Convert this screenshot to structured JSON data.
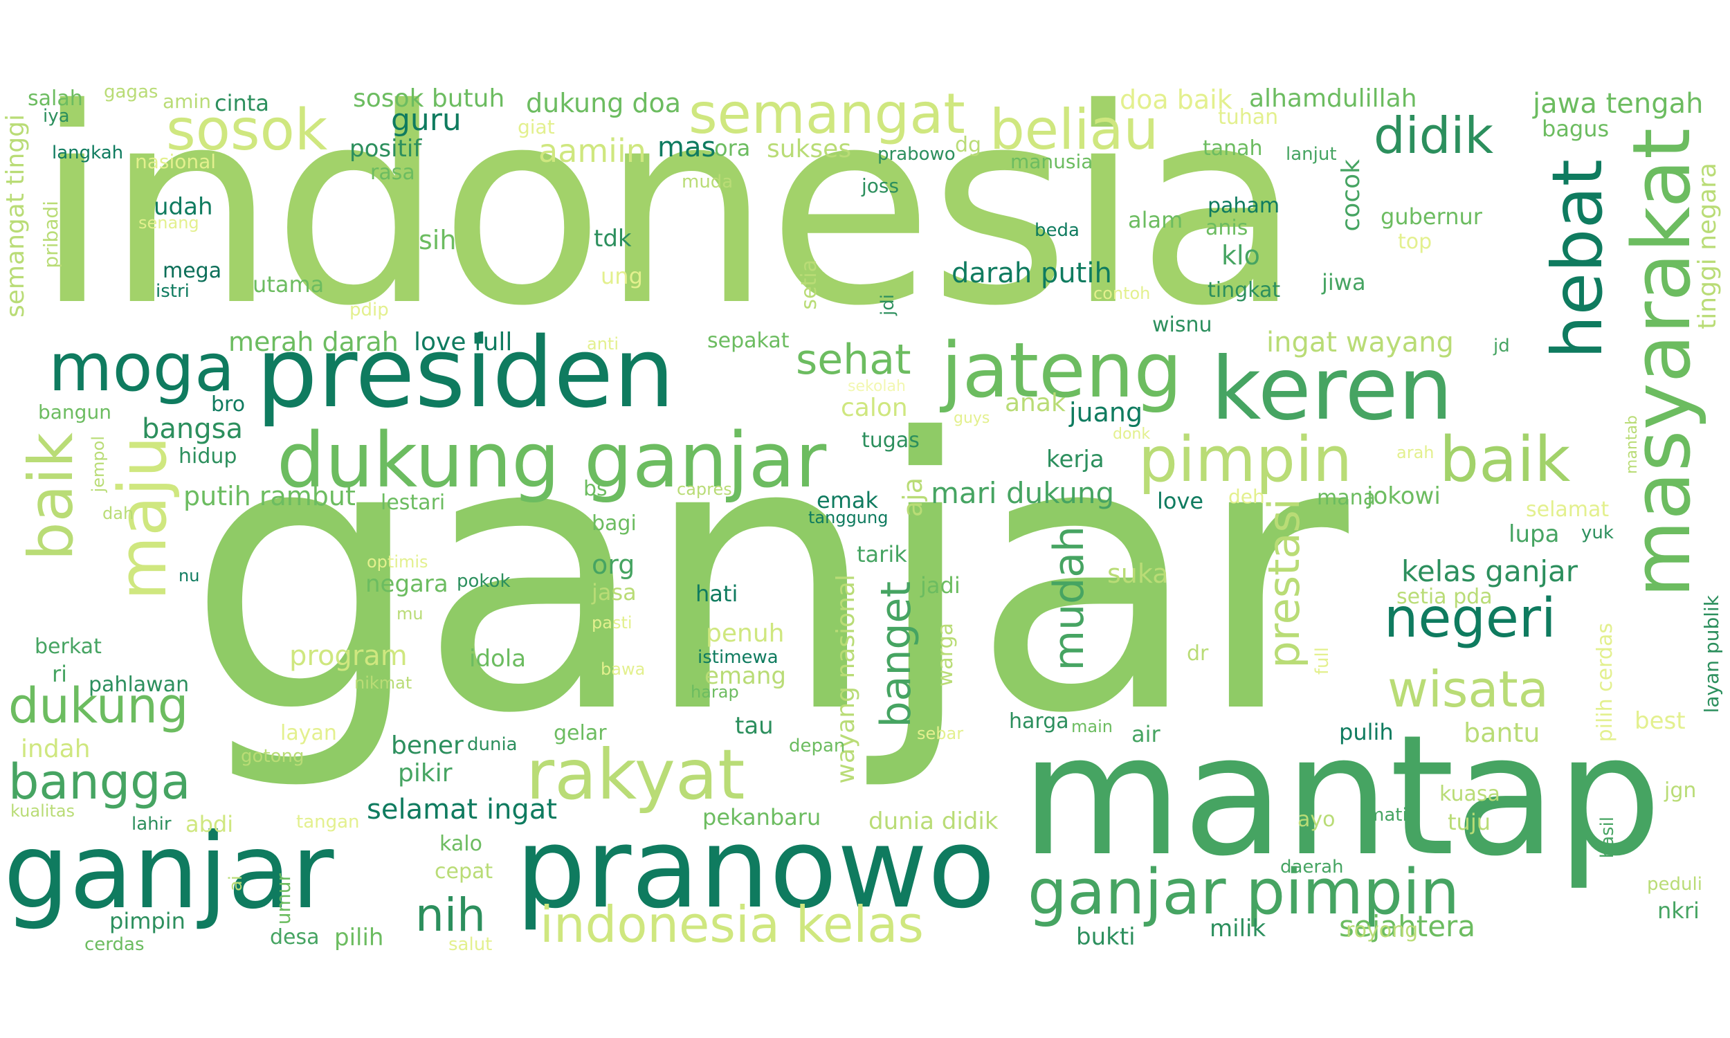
{
  "colors": {
    "background": "#ffffff",
    "light_yellow": "#f2f7b0",
    "yellow_green": "#e3f08e",
    "light_green": "#a2d26a",
    "green": "#6cbc60",
    "teal": "#2c8f5d",
    "dark_teal": "#0b6e58"
  },
  "words": {
    "indonesia": "indonesia",
    "ganjar": "ganjar",
    "mantap": "mantap",
    "ganjar_pranowo_1": "ganjar",
    "ganjar_pranowo_2": "pranowo",
    "presiden": "presiden",
    "dukung_ganjar": "dukung ganjar",
    "masyarakat": "masyarakat",
    "keren": "keren",
    "hebat": "hebat",
    "jateng": "jateng",
    "pimpin": "pimpin",
    "baik_right": "baik",
    "ganjar_pimpin": "ganjar pimpin",
    "rakyat": "rakyat",
    "indonesia_kelas": "indonesia kelas",
    "semangat": "semangat",
    "sosok": "sosok",
    "beliau": "beliau",
    "didik": "didik",
    "moga": "moga",
    "maju": "maju",
    "baik_left": "baik",
    "dukung": "dukung",
    "bangga": "bangga",
    "nih": "nih",
    "negeri": "negeri",
    "wisata": "wisata",
    "prestasi": "prestasi",
    "mudah": "mudah",
    "banget": "banget",
    "sehat": "sehat",
    "aamiin": "aamiin",
    "semangat_tinggi": "semangat tinggi",
    "tinggi_negara": "tinggi negara",
    "wayang_nasional": "wayang nasional",
    "sejahtera": "sejahtera",
    "kelas_ganjar": "kelas ganjar",
    "dukung_doa": "dukung doa",
    "doa_baik": "doa baik",
    "alhamdulillah": "alhamdulillah",
    "jawa_tengah": "jawa tengah",
    "sosok_butuh": "sosok butuh",
    "salah": "salah",
    "gagas": "gagas",
    "amin": "amin",
    "cinta": "cinta",
    "iya": "iya",
    "langkah": "langkah",
    "nasional": "nasional",
    "positif": "positif",
    "rasa": "rasa",
    "guru": "guru",
    "giat": "giat",
    "mas": "mas",
    "ora": "ora",
    "sukses": "sukses",
    "prabowo": "prabowo",
    "dg": "dg",
    "manusia": "manusia",
    "tuhan": "tuhan",
    "tanah": "tanah",
    "lanjut": "lanjut",
    "bagus": "bagus",
    "udah": "udah",
    "senang": "senang",
    "pribadi": "pribadi",
    "muda": "muda",
    "joss": "joss",
    "sih": "sih",
    "tdk": "tdk",
    "cocok": "cocok",
    "beda": "beda",
    "alam": "alam",
    "paham": "paham",
    "anis": "anis",
    "gubernur": "gubernur",
    "top": "top",
    "mega": "mega",
    "istri": "istri",
    "utama": "utama",
    "ung": "ung",
    "setia": "setia",
    "darah_putih": "darah putih",
    "klo": "klo",
    "tingkat": "tingkat",
    "jiwa": "jiwa",
    "contoh": "contoh",
    "pdip": "pdip",
    "jdi": "jdi",
    "wisnu": "wisnu",
    "merah_darah": "merah darah",
    "love_full": "love full",
    "anti": "anti",
    "sepakat": "sepakat",
    "ingat_wayang": "ingat wayang",
    "jd": "jd",
    "bangun": "bangun",
    "bro": "bro",
    "bangsa": "bangsa",
    "sekolah": "sekolah",
    "calon": "calon",
    "anak": "anak",
    "juang": "juang",
    "guys": "guys",
    "donk": "donk",
    "mantab": "mantab",
    "hidup": "hidup",
    "jempol": "jempol",
    "tugas": "tugas",
    "arah": "arah",
    "kerja": "kerja",
    "putih_rambut": "putih rambut",
    "lestari": "lestari",
    "bs": "bs",
    "capres": "capres",
    "aja": "aja",
    "mari_dukung": "mari dukung",
    "emak": "emak",
    "tanggung": "tanggung",
    "love": "love",
    "deh": "deh",
    "mana": "mana",
    "jokowi": "jokowi",
    "dah": "dah",
    "bagi": "bagi",
    "selamat": "selamat",
    "lupa": "lupa",
    "yuk": "yuk",
    "optimis": "optimis",
    "org": "org",
    "tarik": "tarik",
    "nu": "nu",
    "negara": "negara",
    "pokok": "pokok",
    "jasa": "jasa",
    "hati": "hati",
    "jadi": "jadi",
    "suka": "suka",
    "mu": "mu",
    "pasti": "pasti",
    "setia_pda": "setia pda",
    "berkat": "berkat",
    "program": "program",
    "idola": "idola",
    "penuh": "penuh",
    "istimewa": "istimewa",
    "ri": "ri",
    "bawa": "bawa",
    "emang": "emang",
    "dr": "dr",
    "layan_publik": "layan publik",
    "pahlawan": "pahlawan",
    "nikmat": "nikmat",
    "harap": "harap",
    "full": "full",
    "pilih_cerdas": "pilih cerdas",
    "warga": "warga",
    "tau": "tau",
    "harga": "harga",
    "main": "main",
    "bantu": "bantu",
    "best": "best",
    "layan": "layan",
    "bener": "bener",
    "dunia": "dunia",
    "gelar": "gelar",
    "depan": "depan",
    "sebar": "sebar",
    "air": "air",
    "pulih": "pulih",
    "indah": "indah",
    "gotong": "gotong",
    "pikir": "pikir",
    "kualitas": "kualitas",
    "lahir": "lahir",
    "abdi": "abdi",
    "tangan": "tangan",
    "selamat_ingat": "selamat ingat",
    "pekanbaru": "pekanbaru",
    "dunia_didik": "dunia didik",
    "kuasa": "kuasa",
    "jgn": "jgn",
    "ayo": "ayo",
    "mati": "mati",
    "tuju": "tuju",
    "hasil": "hasil",
    "kalo": "kalo",
    "ai": "ai",
    "umur": "umur",
    "cepat": "cepat",
    "daerah": "daerah",
    "peduli": "peduli",
    "pimpin_small": "pimpin",
    "nkri": "nkri",
    "cerdas": "cerdas",
    "desa": "desa",
    "pilih": "pilih",
    "salut": "salut",
    "bukti": "bukti",
    "milik": "milik",
    "royong": "royong"
  }
}
